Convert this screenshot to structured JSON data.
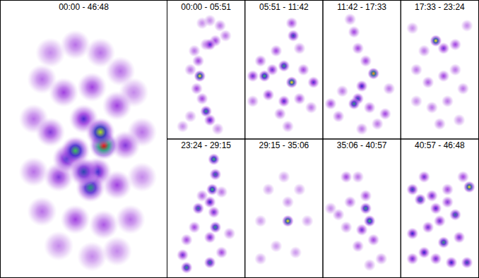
{
  "chart_data": [
    {
      "type": "heatmap",
      "title": "00:00 - 46:48",
      "xlim": [
        0,
        1
      ],
      "ylim": [
        0,
        1
      ],
      "tick_labels": false,
      "x": [
        0.3,
        0.45,
        0.6,
        0.72,
        0.8,
        0.25,
        0.38,
        0.55,
        0.7,
        0.2,
        0.85,
        0.3,
        0.75,
        0.2,
        0.35,
        0.7,
        0.85,
        0.25,
        0.45,
        0.62,
        0.78,
        0.35,
        0.55,
        0.7,
        0.5,
        0.4,
        0.58,
        0.45,
        0.54,
        0.62,
        0.6,
        0.5
      ],
      "y": [
        0.15,
        0.12,
        0.15,
        0.22,
        0.3,
        0.25,
        0.3,
        0.28,
        0.35,
        0.4,
        0.45,
        0.45,
        0.5,
        0.6,
        0.62,
        0.65,
        0.62,
        0.75,
        0.78,
        0.8,
        0.78,
        0.88,
        0.92,
        0.9,
        0.4,
        0.55,
        0.6,
        0.52,
        0.66,
        0.5,
        0.45,
        0.6
      ],
      "values": [
        0.15,
        0.2,
        0.2,
        0.2,
        0.15,
        0.2,
        0.3,
        0.3,
        0.3,
        0.2,
        0.2,
        0.35,
        0.35,
        0.2,
        0.35,
        0.3,
        0.15,
        0.2,
        0.3,
        0.25,
        0.2,
        0.15,
        0.15,
        0.15,
        0.45,
        0.5,
        0.5,
        0.72,
        0.65,
        1.0,
        0.8,
        0.55
      ]
    },
    {
      "type": "heatmap",
      "title": "00:00 - 05:51",
      "xlim": [
        0,
        1
      ],
      "ylim": [
        0,
        1
      ],
      "tick_labels": false,
      "x": [
        0.45,
        0.55,
        0.68,
        0.75,
        0.62,
        0.5,
        0.35,
        0.4,
        0.3,
        0.42,
        0.38,
        0.45,
        0.5,
        0.55,
        0.3,
        0.2,
        0.65,
        0.55
      ],
      "y": [
        0.08,
        0.06,
        0.1,
        0.18,
        0.22,
        0.25,
        0.3,
        0.38,
        0.45,
        0.5,
        0.6,
        0.68,
        0.78,
        0.85,
        0.82,
        0.9,
        0.92,
        0.25
      ],
      "values": [
        0.15,
        0.15,
        0.2,
        0.2,
        0.3,
        0.2,
        0.2,
        0.3,
        0.2,
        0.85,
        0.3,
        0.3,
        0.65,
        0.45,
        0.15,
        0.15,
        0.15,
        0.45
      ]
    },
    {
      "type": "heatmap",
      "title": "05:51 - 11:42",
      "xlim": [
        0,
        1
      ],
      "ylim": [
        0,
        1
      ],
      "tick_labels": false,
      "x": [
        0.6,
        0.62,
        0.7,
        0.4,
        0.2,
        0.1,
        0.25,
        0.35,
        0.5,
        0.6,
        0.75,
        0.88,
        0.3,
        0.5,
        0.7,
        0.45,
        0.55,
        0.1,
        0.85
      ],
      "y": [
        0.08,
        0.18,
        0.28,
        0.3,
        0.38,
        0.5,
        0.5,
        0.45,
        0.42,
        0.55,
        0.45,
        0.55,
        0.65,
        0.7,
        0.68,
        0.8,
        0.9,
        0.7,
        0.75
      ],
      "values": [
        0.3,
        0.55,
        0.2,
        0.3,
        0.3,
        0.4,
        0.7,
        0.4,
        0.65,
        0.85,
        0.3,
        0.45,
        0.4,
        0.45,
        0.3,
        0.25,
        0.2,
        0.2,
        0.2
      ]
    },
    {
      "type": "heatmap",
      "title": "11:42 - 17:33",
      "xlim": [
        0,
        1
      ],
      "ylim": [
        0,
        1
      ],
      "tick_labels": false,
      "x": [
        0.35,
        0.4,
        0.45,
        0.55,
        0.65,
        0.5,
        0.45,
        0.4,
        0.25,
        0.1,
        0.2,
        0.6,
        0.8,
        0.7,
        0.5,
        0.85
      ],
      "y": [
        0.05,
        0.15,
        0.28,
        0.38,
        0.48,
        0.58,
        0.68,
        0.72,
        0.62,
        0.72,
        0.82,
        0.75,
        0.8,
        0.88,
        0.92,
        0.6
      ],
      "values": [
        0.2,
        0.3,
        0.3,
        0.3,
        0.9,
        0.5,
        0.55,
        0.65,
        0.2,
        0.3,
        0.25,
        0.3,
        0.3,
        0.2,
        0.2,
        0.2
      ]
    },
    {
      "type": "heatmap",
      "title": "17:33 - 23:24",
      "xlim": [
        0,
        1
      ],
      "ylim": [
        0,
        1
      ],
      "tick_labels": false,
      "x": [
        0.45,
        0.55,
        0.7,
        0.3,
        0.2,
        0.35,
        0.55,
        0.7,
        0.8,
        0.6,
        0.4,
        0.2,
        0.5,
        0.75,
        0.15,
        0.85
      ],
      "y": [
        0.22,
        0.28,
        0.25,
        0.3,
        0.45,
        0.55,
        0.5,
        0.45,
        0.6,
        0.7,
        0.75,
        0.7,
        0.88,
        0.85,
        0.12,
        0.1
      ],
      "values": [
        0.85,
        0.4,
        0.3,
        0.2,
        0.2,
        0.25,
        0.3,
        0.2,
        0.2,
        0.2,
        0.2,
        0.15,
        0.2,
        0.15,
        0.15,
        0.15
      ]
    },
    {
      "type": "heatmap",
      "title": "23:24 - 29:15",
      "xlim": [
        0,
        1
      ],
      "ylim": [
        0,
        1
      ],
      "tick_labels": false,
      "x": [
        0.6,
        0.62,
        0.58,
        0.55,
        0.4,
        0.6,
        0.62,
        0.55,
        0.35,
        0.25,
        0.2,
        0.25,
        0.55,
        0.7,
        0.8,
        0.45,
        0.7
      ],
      "y": [
        0.06,
        0.18,
        0.3,
        0.4,
        0.45,
        0.48,
        0.6,
        0.68,
        0.6,
        0.7,
        0.82,
        0.92,
        0.88,
        0.8,
        0.65,
        0.35,
        0.32
      ],
      "values": [
        0.7,
        0.6,
        0.7,
        0.5,
        0.6,
        0.4,
        0.65,
        0.4,
        0.3,
        0.3,
        0.4,
        0.65,
        0.6,
        0.3,
        0.2,
        0.25,
        0.2
      ]
    },
    {
      "type": "heatmap",
      "title": "29:15 - 35:06",
      "xlim": [
        0,
        1
      ],
      "ylim": [
        0,
        1
      ],
      "tick_labels": false,
      "x": [
        0.3,
        0.5,
        0.7,
        0.2,
        0.8,
        0.4,
        0.65,
        0.2,
        0.55,
        0.55
      ],
      "y": [
        0.3,
        0.2,
        0.3,
        0.55,
        0.55,
        0.75,
        0.8,
        0.85,
        0.4,
        0.55
      ],
      "values": [
        0.12,
        0.12,
        0.12,
        0.12,
        0.12,
        0.12,
        0.12,
        0.12,
        0.15,
        0.85
      ]
    },
    {
      "type": "heatmap",
      "title": "35:06 - 40:57",
      "xlim": [
        0,
        1
      ],
      "ylim": [
        0,
        1
      ],
      "tick_labels": false,
      "x": [
        0.3,
        0.45,
        0.55,
        0.35,
        0.2,
        0.3,
        0.5,
        0.65,
        0.45,
        0.75,
        0.6,
        0.1,
        0.55,
        0.6
      ],
      "y": [
        0.2,
        0.2,
        0.35,
        0.4,
        0.5,
        0.6,
        0.62,
        0.7,
        0.75,
        0.85,
        0.9,
        0.45,
        0.45,
        0.55
      ],
      "values": [
        0.3,
        0.2,
        0.3,
        0.25,
        0.2,
        0.2,
        0.4,
        0.3,
        0.25,
        0.2,
        0.15,
        0.15,
        0.65,
        0.7
      ]
    },
    {
      "type": "heatmap",
      "title": "40:57 - 46:48",
      "xlim": [
        0,
        1
      ],
      "ylim": [
        0,
        1
      ],
      "tick_labels": false,
      "x": [
        0.8,
        0.3,
        0.15,
        0.25,
        0.4,
        0.45,
        0.6,
        0.7,
        0.5,
        0.35,
        0.15,
        0.55,
        0.75,
        0.3,
        0.45,
        0.65,
        0.85,
        0.15,
        0.6,
        0.88
      ],
      "y": [
        0.2,
        0.2,
        0.3,
        0.38,
        0.35,
        0.45,
        0.4,
        0.5,
        0.55,
        0.6,
        0.65,
        0.72,
        0.68,
        0.8,
        0.85,
        0.88,
        0.88,
        0.85,
        0.3,
        0.28
      ],
      "values": [
        0.3,
        0.4,
        0.55,
        0.6,
        0.4,
        0.45,
        0.35,
        0.6,
        0.4,
        0.4,
        0.5,
        0.65,
        0.4,
        0.5,
        0.4,
        0.5,
        0.55,
        0.4,
        0.3,
        0.85
      ]
    }
  ]
}
